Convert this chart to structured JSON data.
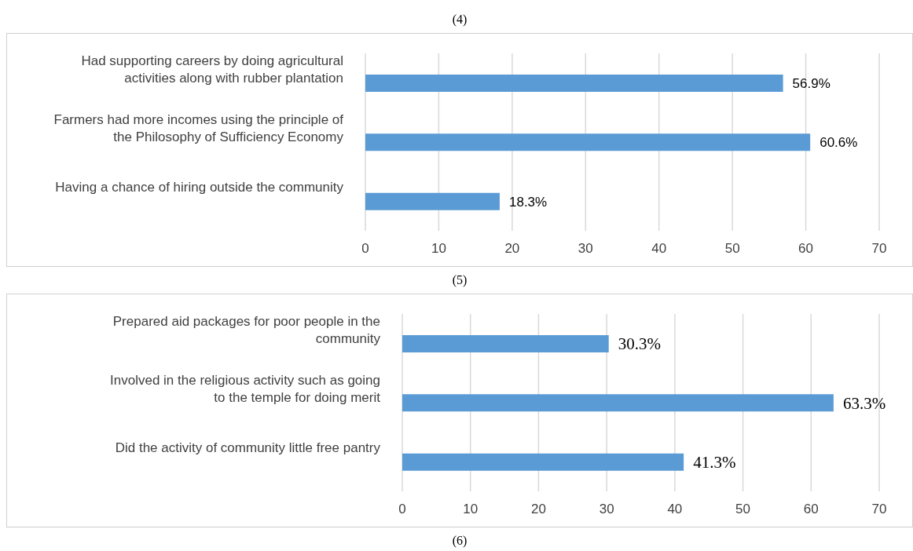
{
  "chart_data": [
    {
      "type": "bar",
      "orientation": "horizontal",
      "annotations": [
        "(4)",
        "(5)"
      ],
      "categories": [
        "Had supporting careers by doing agricultural activities along with rubber plantation",
        "Farmers had more incomes using the principle of the Philosophy of Sufficiency Economy",
        "Having a chance of hiring outside the community"
      ],
      "values": [
        56.9,
        60.6,
        18.3
      ],
      "value_labels": [
        "56.9%",
        "60.6%",
        "18.3%"
      ],
      "color": "#5b9bd5",
      "xlim": [
        0,
        70
      ],
      "xticks": [
        0,
        10,
        20,
        30,
        40,
        50,
        60,
        70
      ],
      "grid": "x"
    },
    {
      "type": "bar",
      "orientation": "horizontal",
      "annotations": [
        "(6)"
      ],
      "categories": [
        "Prepared aid packages for poor people in the community",
        "Involved in the religious activity such as going to the temple for doing merit",
        "Did the activity of community little free pantry"
      ],
      "values": [
        30.3,
        63.3,
        41.3
      ],
      "value_labels": [
        "30.3%",
        "63.3%",
        "41.3%"
      ],
      "color": "#5b9bd5",
      "xlim": [
        0,
        70
      ],
      "xticks": [
        0,
        10,
        20,
        30,
        40,
        50,
        60,
        70
      ],
      "grid": "x"
    }
  ]
}
